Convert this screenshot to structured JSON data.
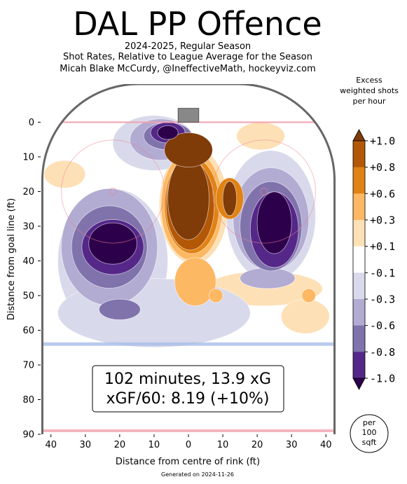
{
  "chart_data": {
    "type": "heatmap",
    "title": "DAL PP Offence",
    "subtitle_lines": [
      "2024-2025, Regular Season",
      "Shot Rates, Relative to League Average for the Season",
      "Micah Blake McCurdy, @IneffectiveMath, hockeyviz.com"
    ],
    "xlabel": "Distance from centre of rink (ft)",
    "ylabel": "Distance from goal line (ft)",
    "xlim": [
      -43,
      43
    ],
    "ylim": [
      -11,
      90
    ],
    "x_ticks": [
      -40,
      -30,
      -20,
      -10,
      0,
      10,
      20,
      30,
      40
    ],
    "x_tick_labels": [
      "40",
      "30",
      "20",
      "10",
      "0",
      "10",
      "20",
      "30",
      "40"
    ],
    "y_ticks": [
      0,
      10,
      20,
      30,
      40,
      50,
      60,
      70,
      80,
      90
    ],
    "y_tick_labels": [
      "0",
      "10",
      "20",
      "30",
      "40",
      "50",
      "60",
      "70",
      "80",
      "90"
    ],
    "stats_lines": [
      "102 minutes, 13.9 xG",
      "xGF/60: 8.19 (+10%)"
    ],
    "colorbar": {
      "title_lines": [
        "Excess",
        "weighted shots",
        "per hour"
      ],
      "tick_labels": [
        "+1.0",
        "+0.8",
        "+0.6",
        "+0.3",
        "+0.1",
        "-0.1",
        "-0.3",
        "-0.6",
        "-0.8",
        "-1.0"
      ],
      "colors": [
        "#7f3b08",
        "#b35806",
        "#e08214",
        "#fdb863",
        "#fee0b6",
        "#ffffff",
        "#d8daeb",
        "#b2abd2",
        "#8073ac",
        "#542788",
        "#2d004b"
      ],
      "unit_lines": [
        "per",
        "100",
        "sqft"
      ]
    },
    "regions": [
      {
        "level": 0.1,
        "x": 1.5,
        "y": 24,
        "rx": 10,
        "ry": 17
      },
      {
        "level": 0.1,
        "x": 22,
        "y": 48,
        "rx": 17,
        "ry": 5
      },
      {
        "level": 0.1,
        "x": 34,
        "y": 56,
        "rx": 7,
        "ry": 5
      },
      {
        "level": 0.1,
        "x": -36,
        "y": 15,
        "rx": 6,
        "ry": 4
      },
      {
        "level": 0.1,
        "x": -29,
        "y": 25,
        "rx": 3,
        "ry": 3
      },
      {
        "level": 0.1,
        "x": 21,
        "y": 4,
        "rx": 7,
        "ry": 4
      },
      {
        "level": 0.3,
        "x": 1,
        "y": 24,
        "rx": 9,
        "ry": 16
      },
      {
        "level": 0.3,
        "x": 2,
        "y": 46,
        "rx": 6,
        "ry": 7
      },
      {
        "level": 0.3,
        "x": 8,
        "y": 50,
        "rx": 2,
        "ry": 2
      },
      {
        "level": 0.3,
        "x": 35,
        "y": 50,
        "rx": 2,
        "ry": 2
      },
      {
        "level": 0.6,
        "x": 1,
        "y": 24,
        "rx": 8,
        "ry": 14
      },
      {
        "level": 0.6,
        "x": 12,
        "y": 22,
        "rx": 4,
        "ry": 6
      },
      {
        "level": 0.8,
        "x": 0.5,
        "y": 24,
        "rx": 7,
        "ry": 13
      },
      {
        "level": 1.0,
        "x": 0,
        "y": 22,
        "rx": 6,
        "ry": 12
      },
      {
        "level": 1.0,
        "x": 0,
        "y": 8,
        "rx": 7,
        "ry": 5
      },
      {
        "level": 1.0,
        "x": 12,
        "y": 22,
        "rx": 2,
        "ry": 5
      },
      {
        "level": -0.1,
        "x": -22,
        "y": 40,
        "rx": 16,
        "ry": 21
      },
      {
        "level": -0.1,
        "x": 24,
        "y": 27,
        "rx": 13,
        "ry": 19
      },
      {
        "level": -0.1,
        "x": -10,
        "y": 6,
        "rx": 12,
        "ry": 8
      },
      {
        "level": -0.1,
        "x": -10,
        "y": 55,
        "rx": 28,
        "ry": 10
      },
      {
        "level": -0.3,
        "x": -23,
        "y": 36,
        "rx": 14,
        "ry": 17
      },
      {
        "level": -0.3,
        "x": 24,
        "y": 28,
        "rx": 11,
        "ry": 15
      },
      {
        "level": -0.3,
        "x": -8,
        "y": 5,
        "rx": 9,
        "ry": 6
      },
      {
        "level": -0.3,
        "x": 23,
        "y": 45,
        "rx": 8,
        "ry": 3
      },
      {
        "level": -0.6,
        "x": -23,
        "y": 36,
        "rx": 11,
        "ry": 12
      },
      {
        "level": -0.6,
        "x": 24,
        "y": 30,
        "rx": 9,
        "ry": 13
      },
      {
        "level": -0.6,
        "x": -6,
        "y": 4,
        "rx": 7,
        "ry": 4
      },
      {
        "level": -0.6,
        "x": -20,
        "y": 54,
        "rx": 6,
        "ry": 3
      },
      {
        "level": -0.8,
        "x": -22,
        "y": 36,
        "rx": 9,
        "ry": 8
      },
      {
        "level": -0.8,
        "x": 25,
        "y": 31,
        "rx": 7,
        "ry": 11
      },
      {
        "level": -0.8,
        "x": -6,
        "y": 3,
        "rx": 5,
        "ry": 3
      },
      {
        "level": -1.0,
        "x": -22,
        "y": 35,
        "rx": 7,
        "ry": 6
      },
      {
        "level": -1.0,
        "x": 25,
        "y": 29,
        "rx": 5,
        "ry": 9
      },
      {
        "level": -1.0,
        "x": -6,
        "y": 3,
        "rx": 3,
        "ry": 2
      }
    ]
  },
  "footer": {
    "generated": "Generated on 2024-11-26"
  }
}
